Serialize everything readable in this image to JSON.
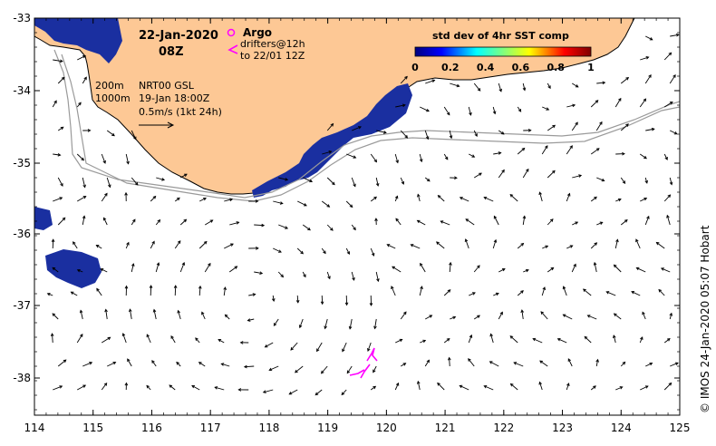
{
  "map": {
    "date": "22-Jan-2020",
    "time": "08Z",
    "legend_argo": "Argo",
    "legend_drifters_1": "drifters@12h",
    "legend_drifters_2": "to 22/01 12Z",
    "depth_200": "200m",
    "depth_1000": "1000m",
    "product": "NRT00 GSL",
    "analysis_time": "19-Jan 18:00Z",
    "scale_label": "0.5m/s (1kt 24h)",
    "colorbar_title": "std dev of 4hr SST comp",
    "colorbar_ticks": [
      "0",
      "0.2",
      "0.4",
      "0.6",
      "0.8",
      "1"
    ],
    "credit": "© IMOS 24-Jan-2020 05:07 Hobart",
    "x_ticks": [
      "114",
      "115",
      "116",
      "117",
      "118",
      "119",
      "120",
      "121",
      "122",
      "123",
      "124",
      "125"
    ],
    "y_ticks": [
      "-33",
      "-34",
      "-35",
      "-36",
      "-37",
      "-38"
    ],
    "colors": {
      "land": "#fdc895",
      "sst_high": "#1a2fa0",
      "drifter": "#ff00ff",
      "isobath": "#9a9a9a"
    }
  }
}
